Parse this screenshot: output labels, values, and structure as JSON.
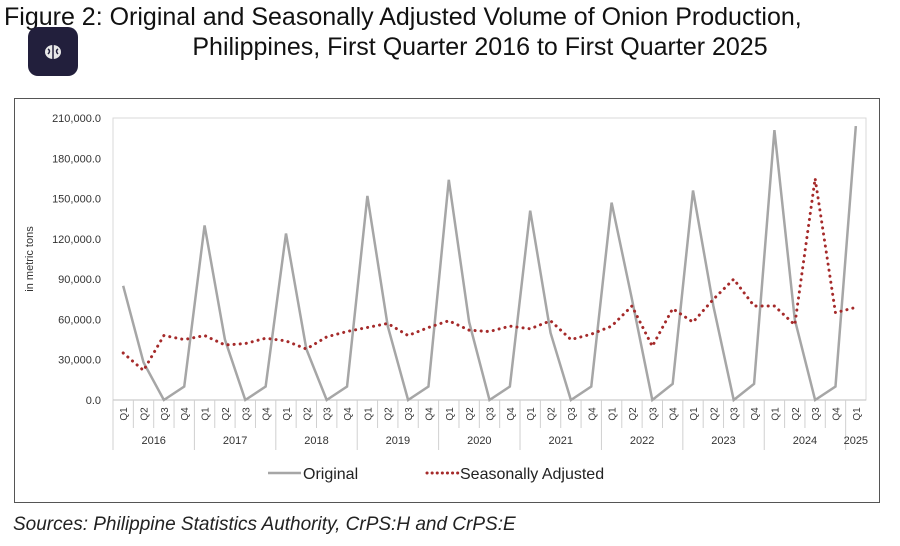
{
  "title_line1": "Figure 2: Original and Seasonally Adjusted Volume of Onion Production,",
  "title_line2": "Philippines, First Quarter 2016 to First Quarter 2025",
  "source": "Sources: Philippine Statistics Authority, CrPS:H and CrPS:E",
  "app_icon": "brain-icon",
  "chart_data": {
    "type": "line",
    "title": "Original and Seasonally Adjusted Volume of Onion Production, Philippines, First Quarter 2016 to First Quarter 2025",
    "xlabel": "",
    "ylabel": "in metric tons",
    "ylim": [
      0,
      210000
    ],
    "yticks": [
      "0.0",
      "30,000.0",
      "60,000.0",
      "90,000.0",
      "120,000.0",
      "150,000.0",
      "180,000.0",
      "210,000.0"
    ],
    "years": [
      "2016",
      "2017",
      "2018",
      "2019",
      "2020",
      "2021",
      "2022",
      "2023",
      "2024",
      "2025"
    ],
    "quarters": [
      "Q1",
      "Q2",
      "Q3",
      "Q4"
    ],
    "legend_position": "bottom",
    "colors": {
      "Original": "#a6a6a6",
      "Seasonally Adjusted": "#a52a2a"
    },
    "series": [
      {
        "name": "Original",
        "values": [
          85000,
          28000,
          0,
          10000,
          130000,
          45000,
          0,
          10000,
          124000,
          38000,
          0,
          10000,
          152000,
          55000,
          0,
          10000,
          164000,
          58000,
          0,
          10000,
          141000,
          50000,
          0,
          10000,
          147000,
          75000,
          0,
          12000,
          156000,
          70000,
          0,
          12000,
          201000,
          60000,
          0,
          10000,
          204000
        ]
      },
      {
        "name": "Seasonally Adjusted",
        "values": [
          35000,
          22000,
          48000,
          45000,
          48000,
          41000,
          42000,
          46000,
          44000,
          38000,
          47000,
          51000,
          54000,
          57000,
          48000,
          54000,
          59000,
          52000,
          51000,
          55000,
          53000,
          59000,
          45000,
          49000,
          55000,
          70000,
          40000,
          68000,
          58000,
          75000,
          90000,
          70000,
          70000,
          56000,
          165000,
          65000,
          69000
        ]
      }
    ]
  }
}
